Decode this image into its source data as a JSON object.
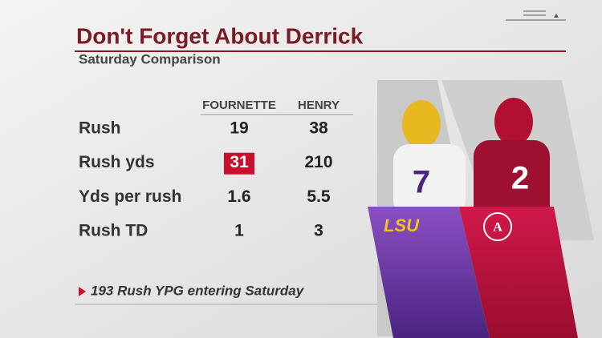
{
  "header": {
    "title": "Don't Forget About Derrick",
    "subtitle": "Saturday Comparison"
  },
  "table": {
    "columns": [
      "FOURNETTE",
      "HENRY"
    ],
    "rows": [
      [
        "Rush",
        19,
        38
      ],
      [
        "Rush yds",
        31,
        210
      ],
      [
        "Yds per rush",
        1.6,
        5.5
      ],
      [
        "Rush TD",
        1,
        3
      ]
    ]
  },
  "footnote": "193 Rush YPG entering Saturday",
  "logo": "LSU"
}
